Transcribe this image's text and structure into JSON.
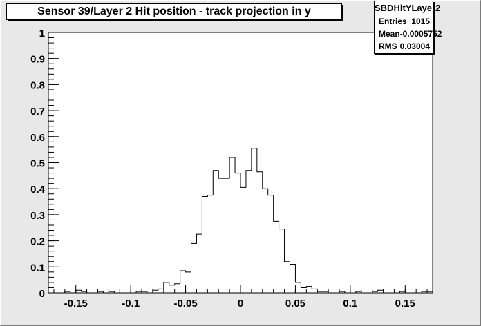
{
  "chart_data": {
    "type": "bar",
    "title": "Sensor 39/Layer 2 Hit position - track projection in y",
    "xlabel": "",
    "ylabel": "",
    "xlim": [
      -0.175,
      0.175
    ],
    "ylim": [
      0,
      1
    ],
    "bin_width": 0.005,
    "x_ticks": [
      {
        "value": -0.15,
        "label": "-0.15"
      },
      {
        "value": -0.1,
        "label": "-0.1"
      },
      {
        "value": -0.05,
        "label": "-0.05"
      },
      {
        "value": 0,
        "label": "0"
      },
      {
        "value": 0.05,
        "label": "0.05"
      },
      {
        "value": 0.1,
        "label": "0.1"
      },
      {
        "value": 0.15,
        "label": "0.15"
      }
    ],
    "y_ticks": [
      {
        "value": 0,
        "label": "0"
      },
      {
        "value": 0.1,
        "label": "0.1"
      },
      {
        "value": 0.2,
        "label": "0.2"
      },
      {
        "value": 0.3,
        "label": "0.3"
      },
      {
        "value": 0.4,
        "label": "0.4"
      },
      {
        "value": 0.5,
        "label": "0.5"
      },
      {
        "value": 0.6,
        "label": "0.6"
      },
      {
        "value": 0.7,
        "label": "0.7"
      },
      {
        "value": 0.8,
        "label": "0.8"
      },
      {
        "value": 0.9,
        "label": "0.9"
      },
      {
        "value": 1,
        "label": "1"
      }
    ],
    "bins": [
      {
        "x": -0.175,
        "y": 0
      },
      {
        "x": -0.17,
        "y": 0
      },
      {
        "x": -0.165,
        "y": 0
      },
      {
        "x": -0.16,
        "y": 0.005
      },
      {
        "x": -0.155,
        "y": 0
      },
      {
        "x": -0.15,
        "y": 0.01
      },
      {
        "x": -0.145,
        "y": 0.005
      },
      {
        "x": -0.14,
        "y": 0
      },
      {
        "x": -0.135,
        "y": 0
      },
      {
        "x": -0.13,
        "y": 0.005
      },
      {
        "x": -0.125,
        "y": 0
      },
      {
        "x": -0.12,
        "y": 0.005
      },
      {
        "x": -0.115,
        "y": 0
      },
      {
        "x": -0.11,
        "y": 0
      },
      {
        "x": -0.105,
        "y": 0
      },
      {
        "x": -0.1,
        "y": 0
      },
      {
        "x": -0.095,
        "y": 0.005
      },
      {
        "x": -0.09,
        "y": 0.005
      },
      {
        "x": -0.085,
        "y": 0
      },
      {
        "x": -0.08,
        "y": 0.01
      },
      {
        "x": -0.075,
        "y": 0.015
      },
      {
        "x": -0.07,
        "y": 0.04
      },
      {
        "x": -0.065,
        "y": 0.03
      },
      {
        "x": -0.06,
        "y": 0.035
      },
      {
        "x": -0.055,
        "y": 0.085
      },
      {
        "x": -0.05,
        "y": 0.08
      },
      {
        "x": -0.045,
        "y": 0.19
      },
      {
        "x": -0.04,
        "y": 0.225
      },
      {
        "x": -0.035,
        "y": 0.37
      },
      {
        "x": -0.03,
        "y": 0.375
      },
      {
        "x": -0.025,
        "y": 0.47
      },
      {
        "x": -0.02,
        "y": 0.44
      },
      {
        "x": -0.015,
        "y": 0.44
      },
      {
        "x": -0.01,
        "y": 0.52
      },
      {
        "x": -0.005,
        "y": 0.46
      },
      {
        "x": 0,
        "y": 0.405
      },
      {
        "x": 0.005,
        "y": 0.47
      },
      {
        "x": 0.01,
        "y": 0.555
      },
      {
        "x": 0.015,
        "y": 0.465
      },
      {
        "x": 0.02,
        "y": 0.4
      },
      {
        "x": 0.025,
        "y": 0.375
      },
      {
        "x": 0.03,
        "y": 0.275
      },
      {
        "x": 0.035,
        "y": 0.245
      },
      {
        "x": 0.04,
        "y": 0.12
      },
      {
        "x": 0.045,
        "y": 0.11
      },
      {
        "x": 0.05,
        "y": 0.04
      },
      {
        "x": 0.055,
        "y": 0.02
      },
      {
        "x": 0.06,
        "y": 0.025
      },
      {
        "x": 0.065,
        "y": 0.015
      },
      {
        "x": 0.07,
        "y": 0.005
      },
      {
        "x": 0.075,
        "y": 0.005
      },
      {
        "x": 0.08,
        "y": 0
      },
      {
        "x": 0.085,
        "y": 0
      },
      {
        "x": 0.09,
        "y": 0.005
      },
      {
        "x": 0.095,
        "y": 0
      },
      {
        "x": 0.1,
        "y": 0
      },
      {
        "x": 0.105,
        "y": 0.005
      },
      {
        "x": 0.11,
        "y": 0
      },
      {
        "x": 0.115,
        "y": 0
      },
      {
        "x": 0.12,
        "y": 0.005
      },
      {
        "x": 0.125,
        "y": 0.01
      },
      {
        "x": 0.13,
        "y": 0
      },
      {
        "x": 0.135,
        "y": 0
      },
      {
        "x": 0.14,
        "y": 0
      },
      {
        "x": 0.145,
        "y": 0.005
      },
      {
        "x": 0.15,
        "y": 0
      },
      {
        "x": 0.155,
        "y": 0
      },
      {
        "x": 0.16,
        "y": 0
      },
      {
        "x": 0.165,
        "y": 0.005
      },
      {
        "x": 0.17,
        "y": 0.005
      }
    ],
    "grid": false,
    "legend": "none"
  },
  "stats": {
    "name": "SBDHitYLayer2",
    "rows": [
      {
        "label": "Entries",
        "value": "1015"
      },
      {
        "label": "Mean",
        "value": "-0.0005752"
      },
      {
        "label": "RMS",
        "value": "0.03004"
      }
    ]
  }
}
